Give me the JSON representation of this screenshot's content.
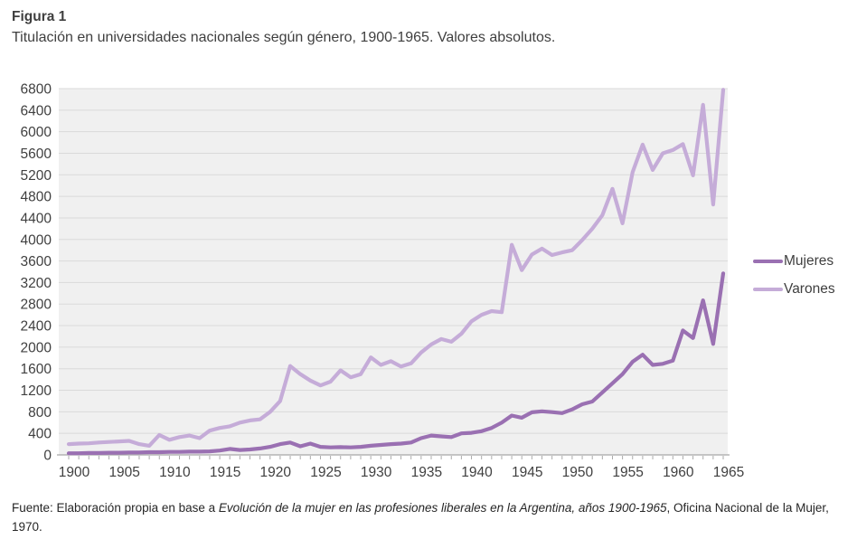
{
  "figure": {
    "label": "Figura 1",
    "title": "Titulación en universidades nacionales según género, 1900-1965. Valores absolutos.",
    "source_prefix": "Fuente: Elaboración propia en base a ",
    "source_italic": "Evolución de la mujer en las profesiones liberales en la Argentina, años 1900-1965",
    "source_suffix": ", Oficina Nacional de la Mujer, 1970."
  },
  "colors": {
    "mujeres_line": "#9a70b2",
    "varones_line": "#c5acd8",
    "plot_background": "#f0f0f0",
    "gridline": "#dadada",
    "axis_line": "#a6a6a6",
    "tick_mark": "#ababab",
    "axis_text": "#404040"
  },
  "chart_data": {
    "type": "line",
    "title": "Titulación en universidades nacionales según género, 1900-1965. Valores absolutos.",
    "xlabel": "",
    "ylabel": "",
    "ylim": [
      0,
      6800
    ],
    "ytick_step": 400,
    "grid": true,
    "legend_position": "right",
    "xtick_labels": [
      "1900",
      "1905",
      "1910",
      "1915",
      "1920",
      "1925",
      "1930",
      "1935",
      "1940",
      "1945",
      "1950",
      "1955",
      "1960",
      "1965"
    ],
    "x": [
      1900,
      1901,
      1902,
      1903,
      1904,
      1905,
      1906,
      1907,
      1908,
      1909,
      1910,
      1911,
      1912,
      1913,
      1914,
      1915,
      1916,
      1917,
      1918,
      1919,
      1920,
      1921,
      1922,
      1923,
      1924,
      1925,
      1926,
      1927,
      1928,
      1929,
      1930,
      1931,
      1932,
      1933,
      1934,
      1935,
      1936,
      1937,
      1938,
      1939,
      1940,
      1941,
      1942,
      1943,
      1944,
      1945,
      1946,
      1947,
      1948,
      1949,
      1950,
      1951,
      1952,
      1953,
      1954,
      1955,
      1956,
      1957,
      1958,
      1959,
      1960,
      1961,
      1962,
      1963,
      1964,
      1965
    ],
    "series": [
      {
        "name": "Mujeres",
        "color": "#9a70b2",
        "values": [
          30,
          30,
          35,
          35,
          40,
          40,
          45,
          45,
          50,
          50,
          55,
          55,
          60,
          60,
          65,
          80,
          110,
          90,
          100,
          120,
          150,
          200,
          230,
          160,
          210,
          150,
          140,
          145,
          140,
          150,
          170,
          185,
          200,
          210,
          230,
          310,
          360,
          345,
          330,
          400,
          410,
          440,
          500,
          600,
          730,
          690,
          790,
          810,
          795,
          775,
          845,
          940,
          990,
          1160,
          1330,
          1500,
          1730,
          1860,
          1670,
          1690,
          1750,
          2310,
          2170,
          2870,
          2060,
          3370
        ]
      },
      {
        "name": "Varones",
        "color": "#c5acd8",
        "values": [
          200,
          210,
          215,
          230,
          240,
          250,
          260,
          200,
          170,
          370,
          280,
          330,
          360,
          310,
          450,
          500,
          530,
          600,
          640,
          660,
          800,
          1000,
          1650,
          1500,
          1380,
          1290,
          1360,
          1570,
          1440,
          1500,
          1810,
          1670,
          1740,
          1640,
          1700,
          1900,
          2050,
          2150,
          2100,
          2250,
          2480,
          2600,
          2670,
          2650,
          3900,
          3430,
          3720,
          3830,
          3710,
          3760,
          3800,
          3990,
          4200,
          4450,
          4940,
          4300,
          5250,
          5760,
          5290,
          5600,
          5660,
          5770,
          5190,
          6500,
          4650,
          6780
        ]
      }
    ]
  }
}
